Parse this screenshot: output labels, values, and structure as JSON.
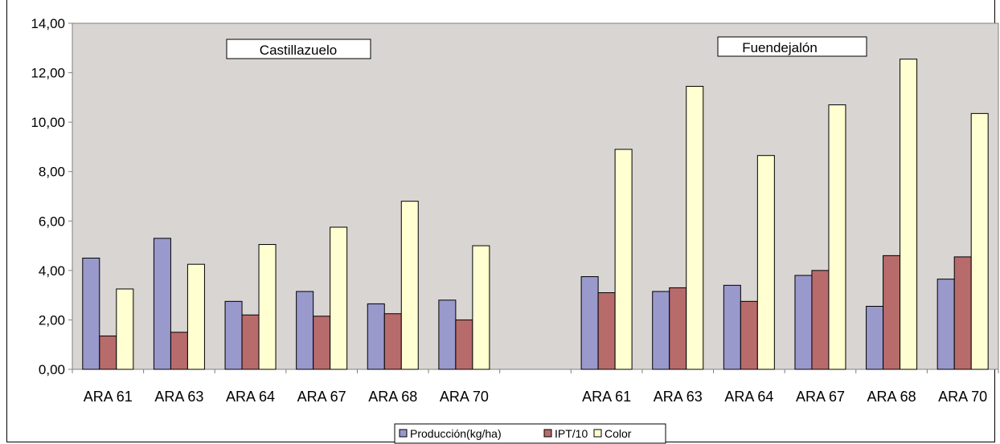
{
  "chart_data": {
    "type": "bar",
    "categories": [
      "ARA 61",
      "ARA 63",
      "ARA 64",
      "ARA 67",
      "ARA 68",
      "ARA 70",
      "",
      "ARA 61",
      "ARA 63",
      "ARA 64",
      "ARA 67",
      "ARA 68",
      "ARA 70"
    ],
    "groups": [
      "Castillazuelo",
      "Fuendejalón"
    ],
    "series": [
      {
        "name": "Producción(kg/ha)",
        "color": "#9999cc",
        "values": [
          4.5,
          5.3,
          2.75,
          3.15,
          2.65,
          2.8,
          null,
          3.75,
          3.15,
          3.4,
          3.8,
          2.55,
          3.65
        ]
      },
      {
        "name": "IPT/10",
        "color": "#b86b6b",
        "values": [
          1.35,
          1.5,
          2.2,
          2.15,
          2.25,
          2.0,
          null,
          3.1,
          3.3,
          2.75,
          4.0,
          4.6,
          4.55
        ]
      },
      {
        "name": "Color",
        "color": "#ffffd2",
        "values": [
          3.25,
          4.25,
          5.05,
          5.75,
          6.8,
          5.0,
          null,
          8.9,
          11.45,
          8.65,
          10.7,
          12.55,
          10.35
        ]
      }
    ],
    "ylim": [
      0,
      14
    ],
    "yticks": [
      "0,00",
      "2,00",
      "4,00",
      "6,00",
      "8,00",
      "10,00",
      "12,00",
      "14,00"
    ],
    "plot_background": "#d9d5d2",
    "grid": false,
    "legend_position": "bottom"
  }
}
